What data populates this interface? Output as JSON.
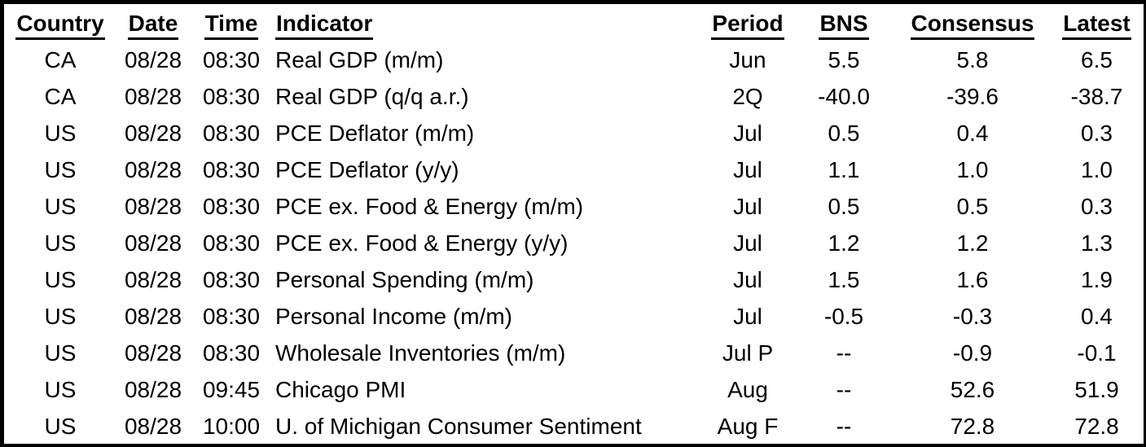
{
  "colors": {
    "text": "#000000",
    "background": "#ffffff",
    "border": "#000000"
  },
  "table": {
    "columns": [
      {
        "key": "country",
        "label": "Country"
      },
      {
        "key": "date",
        "label": "Date"
      },
      {
        "key": "time",
        "label": "Time"
      },
      {
        "key": "indicator",
        "label": "Indicator"
      },
      {
        "key": "period",
        "label": "Period"
      },
      {
        "key": "bns",
        "label": "BNS"
      },
      {
        "key": "consensus",
        "label": "Consensus"
      },
      {
        "key": "latest",
        "label": "Latest"
      }
    ],
    "rows": [
      [
        "CA",
        "08/28",
        "08:30",
        "Real GDP (m/m)",
        "Jun",
        "5.5",
        "5.8",
        "6.5"
      ],
      [
        "CA",
        "08/28",
        "08:30",
        "Real GDP (q/q a.r.)",
        "2Q",
        "-40.0",
        "-39.6",
        "-38.7"
      ],
      [
        "US",
        "08/28",
        "08:30",
        "PCE Deflator (m/m)",
        "Jul",
        "0.5",
        "0.4",
        "0.3"
      ],
      [
        "US",
        "08/28",
        "08:30",
        "PCE Deflator (y/y)",
        "Jul",
        "1.1",
        "1.0",
        "1.0"
      ],
      [
        "US",
        "08/28",
        "08:30",
        "PCE ex. Food & Energy (m/m)",
        "Jul",
        "0.5",
        "0.5",
        "0.3"
      ],
      [
        "US",
        "08/28",
        "08:30",
        "PCE ex. Food & Energy (y/y)",
        "Jul",
        "1.2",
        "1.2",
        "1.3"
      ],
      [
        "US",
        "08/28",
        "08:30",
        "Personal Spending (m/m)",
        "Jul",
        "1.5",
        "1.6",
        "1.9"
      ],
      [
        "US",
        "08/28",
        "08:30",
        "Personal Income (m/m)",
        "Jul",
        "-0.5",
        "-0.3",
        "0.4"
      ],
      [
        "US",
        "08/28",
        "08:30",
        "Wholesale Inventories (m/m)",
        "Jul P",
        "--",
        "-0.9",
        "-0.1"
      ],
      [
        "US",
        "08/28",
        "09:45",
        "Chicago PMI",
        "Aug",
        "--",
        "52.6",
        "51.9"
      ],
      [
        "US",
        "08/28",
        "10:00",
        "U. of Michigan Consumer Sentiment",
        "Aug F",
        "--",
        "72.8",
        "72.8"
      ]
    ]
  }
}
